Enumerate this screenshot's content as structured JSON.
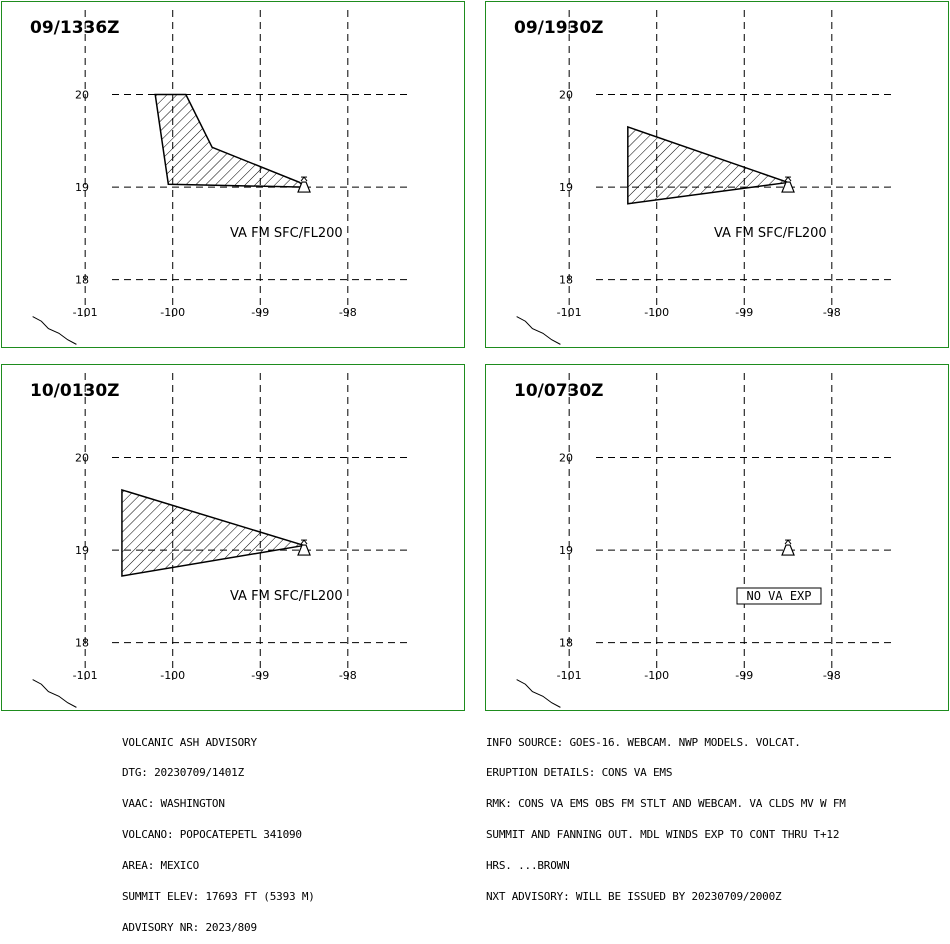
{
  "panels": [
    {
      "time": "09/1336Z",
      "label": "VA FM SFC/FL200",
      "ash_polygon": [
        [
          -100.2,
          20.0
        ],
        [
          -99.85,
          20.0
        ],
        [
          -99.55,
          19.43
        ],
        [
          -98.55,
          19.05
        ],
        [
          -98.5,
          19.0
        ],
        [
          -100.05,
          19.03
        ]
      ],
      "no_va": false
    },
    {
      "time": "09/1930Z",
      "label": "VA FM SFC/FL200",
      "ash_polygon": [
        [
          -100.33,
          19.65
        ],
        [
          -98.5,
          19.05
        ],
        [
          -100.33,
          18.82
        ]
      ],
      "no_va": false
    },
    {
      "time": "10/0130Z",
      "label": "VA FM SFC/FL200",
      "ash_polygon": [
        [
          -100.58,
          19.65
        ],
        [
          -98.5,
          19.05
        ],
        [
          -100.58,
          18.72
        ]
      ],
      "no_va": false
    },
    {
      "time": "10/0730Z",
      "label": "NO VA EXP",
      "ash_polygon": [],
      "no_va": true
    }
  ],
  "map": {
    "lon_ticks": [
      -101,
      -100,
      -99,
      -98
    ],
    "lon_tick_labels": [
      "-101",
      "-100",
      "-99",
      "-98"
    ],
    "lat_ticks": [
      18,
      19,
      20
    ],
    "lat_tick_labels": [
      "18",
      "19",
      "20"
    ],
    "lon_range": [
      -101.95,
      -96.65
    ],
    "lat_range": [
      17.25,
      21.0
    ],
    "volcano": {
      "lon": -98.5,
      "lat": 19.0,
      "icon": "volcano-icon"
    },
    "coastline": [
      [
        -101.6,
        17.6
      ],
      [
        -101.5,
        17.55
      ],
      [
        -101.42,
        17.47
      ],
      [
        -101.3,
        17.42
      ],
      [
        -101.2,
        17.35
      ],
      [
        -101.1,
        17.3
      ]
    ],
    "grid_color": "#000000",
    "frame_color": "#1e8c1e"
  },
  "footer_left": [
    "VOLCANIC ASH ADVISORY",
    "DTG: 20230709/1401Z",
    "VAAC: WASHINGTON",
    "VOLCANO: POPOCATEPETL 341090",
    "AREA: MEXICO",
    "SUMMIT ELEV: 17693 FT (5393 M)",
    "ADVISORY NR: 2023/809"
  ],
  "footer_right": [
    "INFO SOURCE: GOES-16. WEBCAM. NWP MODELS. VOLCAT.",
    "ERUPTION DETAILS: CONS VA EMS",
    "RMK: CONS VA EMS OBS FM STLT AND WEBCAM. VA CLDS MV W FM",
    "SUMMIT AND FANNING OUT. MDL WINDS EXP TO CONT THRU T+12",
    "HRS. ...BROWN",
    "NXT ADVISORY: WILL BE ISSUED BY 20230709/2000Z"
  ]
}
